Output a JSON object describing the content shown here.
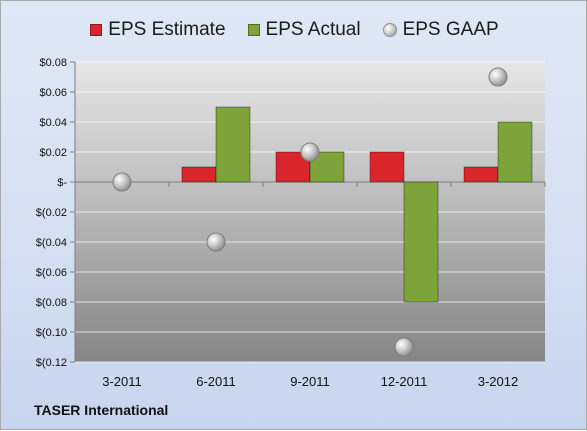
{
  "footer_text": "TASER International",
  "colors": {
    "estimate": "#d9262c",
    "actual": "#7fa33b",
    "gaap": "#a6a6a6"
  },
  "legend": [
    {
      "label": "EPS Estimate",
      "shape": "square",
      "color": "#d9262c"
    },
    {
      "label": "EPS Actual",
      "shape": "square",
      "color": "#7fa33b"
    },
    {
      "label": "EPS GAAP",
      "shape": "circle",
      "color": "#a6a6a6"
    }
  ],
  "chart_data": {
    "type": "bar",
    "categories": [
      "3-2011",
      "6-2011",
      "9-2011",
      "12-2011",
      "3-2012"
    ],
    "series": [
      {
        "name": "EPS Estimate",
        "kind": "bar",
        "values": [
          0.0,
          0.01,
          0.02,
          0.02,
          0.01
        ]
      },
      {
        "name": "EPS Actual",
        "kind": "bar",
        "values": [
          0.0,
          0.05,
          0.02,
          -0.08,
          0.04
        ]
      },
      {
        "name": "EPS GAAP",
        "kind": "scatter",
        "values": [
          0.0,
          -0.04,
          0.02,
          -0.11,
          0.07
        ]
      }
    ],
    "ylim": [
      -0.12,
      0.08
    ],
    "yticks": [
      0.08,
      0.06,
      0.04,
      0.02,
      0,
      -0.02,
      -0.04,
      -0.06,
      -0.08,
      -0.1,
      -0.12
    ],
    "ytick_labels": [
      "$0.08",
      "$0.06",
      "$0.04",
      "$0.02",
      "$-",
      "$(0.02",
      "$(0.04",
      "$(0.06",
      "$(0.08",
      "$(0.10",
      "$(0.12"
    ],
    "grid": true,
    "legend_position": "top"
  }
}
